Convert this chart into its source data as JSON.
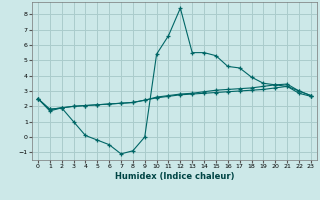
{
  "xlabel": "Humidex (Indice chaleur)",
  "background_color": "#cce8e8",
  "grid_color": "#aacccc",
  "line_color": "#006666",
  "xlim": [
    -0.5,
    23.5
  ],
  "ylim": [
    -1.5,
    8.8
  ],
  "xticks": [
    0,
    1,
    2,
    3,
    4,
    5,
    6,
    7,
    8,
    9,
    10,
    11,
    12,
    13,
    14,
    15,
    16,
    17,
    18,
    19,
    20,
    21,
    22,
    23
  ],
  "yticks": [
    -1,
    0,
    1,
    2,
    3,
    4,
    5,
    6,
    7,
    8
  ],
  "line1_x": [
    0,
    1,
    2,
    3,
    4,
    5,
    6,
    7,
    8,
    9,
    10,
    11,
    12,
    13,
    14,
    15,
    16,
    17,
    18,
    19,
    20,
    21,
    22,
    23
  ],
  "line1_y": [
    2.5,
    1.7,
    1.9,
    1.0,
    0.1,
    -0.2,
    -0.5,
    -1.1,
    -0.9,
    0.0,
    5.4,
    6.6,
    8.4,
    5.5,
    5.5,
    5.3,
    4.6,
    4.5,
    3.9,
    3.5,
    3.4,
    3.3,
    3.0,
    2.7
  ],
  "line2_x": [
    0,
    1,
    2,
    3,
    4,
    5,
    6,
    7,
    8,
    9,
    10,
    11,
    12,
    13,
    14,
    15,
    16,
    17,
    18,
    19,
    20,
    21,
    22,
    23
  ],
  "line2_y": [
    2.5,
    1.8,
    1.9,
    2.0,
    2.05,
    2.1,
    2.15,
    2.2,
    2.25,
    2.4,
    2.6,
    2.7,
    2.8,
    2.85,
    2.95,
    3.05,
    3.1,
    3.15,
    3.2,
    3.3,
    3.4,
    3.45,
    3.0,
    2.7
  ],
  "line3_x": [
    0,
    1,
    2,
    3,
    4,
    5,
    6,
    7,
    8,
    9,
    10,
    11,
    12,
    13,
    14,
    15,
    16,
    17,
    18,
    19,
    20,
    21,
    22,
    23
  ],
  "line3_y": [
    2.5,
    1.8,
    1.9,
    2.0,
    2.05,
    2.1,
    2.15,
    2.2,
    2.25,
    2.4,
    2.55,
    2.65,
    2.75,
    2.8,
    2.85,
    2.9,
    2.95,
    3.0,
    3.05,
    3.1,
    3.2,
    3.3,
    2.85,
    2.65
  ]
}
